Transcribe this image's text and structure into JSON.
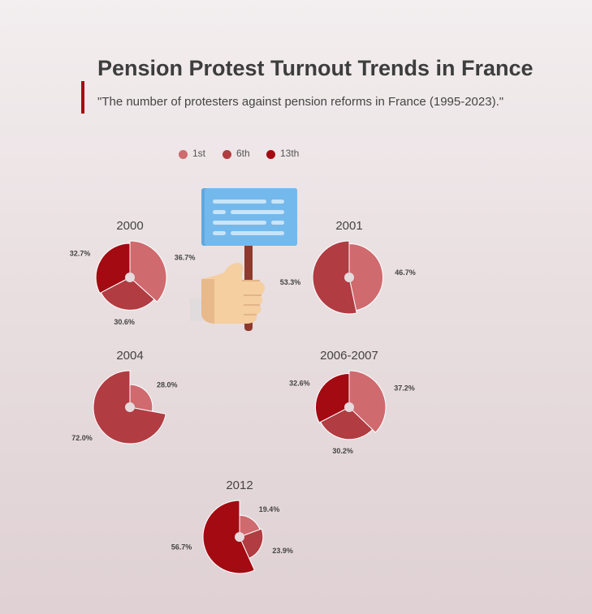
{
  "title": "Pension Protest Turnout Trends in France",
  "subtitle": "\"The number of protesters against pension reforms in France (1995-2023).\"",
  "colors": {
    "1st": "#cf6a6e",
    "6th": "#b13c42",
    "13th": "#a30a12",
    "accent": "#a01015"
  },
  "chart_data": {
    "type": "pie",
    "legend": [
      "1st",
      "6th",
      "13th"
    ],
    "legend_position": "top",
    "style": "rose pie",
    "charts": [
      {
        "title": "2000",
        "slices": [
          {
            "name": "1st",
            "percent": "36.7%",
            "value": 36.7
          },
          {
            "name": "6th",
            "percent": "30.6%",
            "value": 30.6
          },
          {
            "name": "13th",
            "percent": "32.7%",
            "value": 32.7
          }
        ]
      },
      {
        "title": "2001",
        "slices": [
          {
            "name": "1st",
            "percent": "46.7%",
            "value": 46.7
          },
          {
            "name": "6th",
            "percent": "53.3%",
            "value": 53.3
          }
        ]
      },
      {
        "title": "2004",
        "slices": [
          {
            "name": "1st",
            "percent": "28.0%",
            "value": 28.0
          },
          {
            "name": "6th",
            "percent": "72.0%",
            "value": 72.0
          }
        ]
      },
      {
        "title": "2006-2007",
        "slices": [
          {
            "name": "1st",
            "percent": "37.2%",
            "value": 37.2
          },
          {
            "name": "6th",
            "percent": "30.2%",
            "value": 30.2
          },
          {
            "name": "13th",
            "percent": "32.6%",
            "value": 32.6
          }
        ]
      },
      {
        "title": "2012",
        "slices": [
          {
            "name": "1st",
            "percent": "19.4%",
            "value": 19.4
          },
          {
            "name": "6th",
            "percent": "23.9%",
            "value": 23.9
          },
          {
            "name": "13th",
            "percent": "56.7%",
            "value": 56.7
          }
        ]
      }
    ]
  }
}
